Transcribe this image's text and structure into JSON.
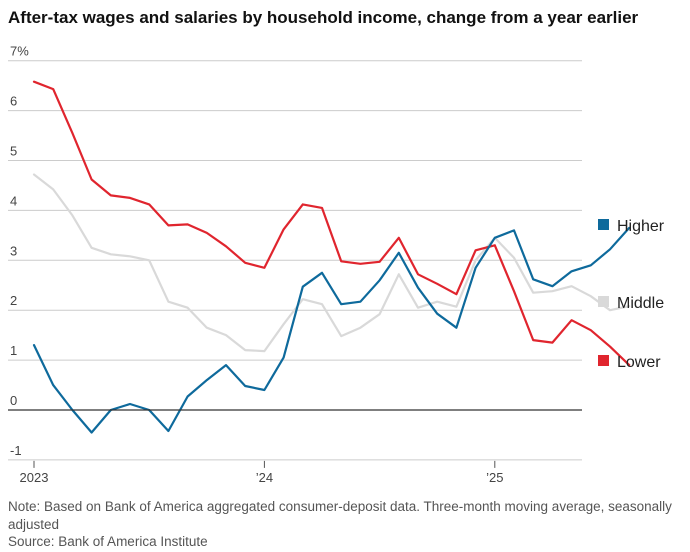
{
  "title": "After-tax wages and salaries by household income, change from a year earlier",
  "note": "Note: Based on Bank of America aggregated consumer-deposit data. Three-month moving average, seasonally adjusted",
  "source": "Source: Bank of America Institute",
  "colors": {
    "Higher": "#0e6a9c",
    "Middle": "#d9d9d9",
    "Lower": "#e0252e",
    "grid": "#cccccc",
    "zero": "#333333"
  },
  "chart_data": {
    "type": "line",
    "title": "After-tax wages and salaries by household income, change from a year earlier",
    "xlabel": "",
    "ylabel": "",
    "ylim": [
      -1,
      7
    ],
    "y_ticks": [
      "-1",
      "0",
      "1",
      "2",
      "3",
      "4",
      "5",
      "6",
      "7%"
    ],
    "y_tick_values": [
      -1,
      0,
      1,
      2,
      3,
      4,
      5,
      6,
      7
    ],
    "x_ticks": [
      "2023",
      "’24",
      "’25"
    ],
    "x_tick_months": [
      0,
      12,
      24
    ],
    "x": [
      "2023-01",
      "2023-02",
      "2023-03",
      "2023-04",
      "2023-05",
      "2023-06",
      "2023-07",
      "2023-08",
      "2023-09",
      "2023-10",
      "2023-11",
      "2023-12",
      "2024-01",
      "2024-02",
      "2024-03",
      "2024-04",
      "2024-05",
      "2024-06",
      "2024-07",
      "2024-08",
      "2024-09",
      "2024-10",
      "2024-11",
      "2024-12",
      "2025-01",
      "2025-02",
      "2025-03",
      "2025-04",
      "2025-05",
      "2025-06",
      "2025-07",
      "2025-08"
    ],
    "legend_position": "right",
    "series": [
      {
        "name": "Higher",
        "values": [
          1.3,
          0.5,
          0.0,
          -0.45,
          0.0,
          0.12,
          0.0,
          -0.42,
          0.27,
          0.6,
          0.9,
          0.48,
          0.4,
          1.05,
          2.47,
          2.75,
          2.12,
          2.17,
          2.6,
          3.15,
          2.45,
          1.93,
          1.65,
          2.85,
          3.45,
          3.6,
          2.62,
          2.48,
          2.78,
          2.9,
          3.22,
          3.65
        ]
      },
      {
        "name": "Middle",
        "values": [
          4.72,
          4.42,
          3.9,
          3.25,
          3.12,
          3.08,
          3.0,
          2.17,
          2.05,
          1.65,
          1.5,
          1.2,
          1.18,
          1.72,
          2.22,
          2.12,
          1.48,
          1.65,
          1.92,
          2.72,
          2.05,
          2.17,
          2.07,
          3.0,
          3.45,
          3.05,
          2.35,
          2.38,
          2.48,
          2.28,
          2.0,
          2.08
        ]
      },
      {
        "name": "Lower",
        "values": [
          6.58,
          6.43,
          5.55,
          4.62,
          4.3,
          4.25,
          4.12,
          3.7,
          3.72,
          3.55,
          3.28,
          2.95,
          2.85,
          3.62,
          4.12,
          4.05,
          2.98,
          2.93,
          2.97,
          3.45,
          2.72,
          2.53,
          2.32,
          3.2,
          3.3,
          2.38,
          1.4,
          1.35,
          1.8,
          1.6,
          1.27,
          0.9
        ]
      }
    ]
  }
}
